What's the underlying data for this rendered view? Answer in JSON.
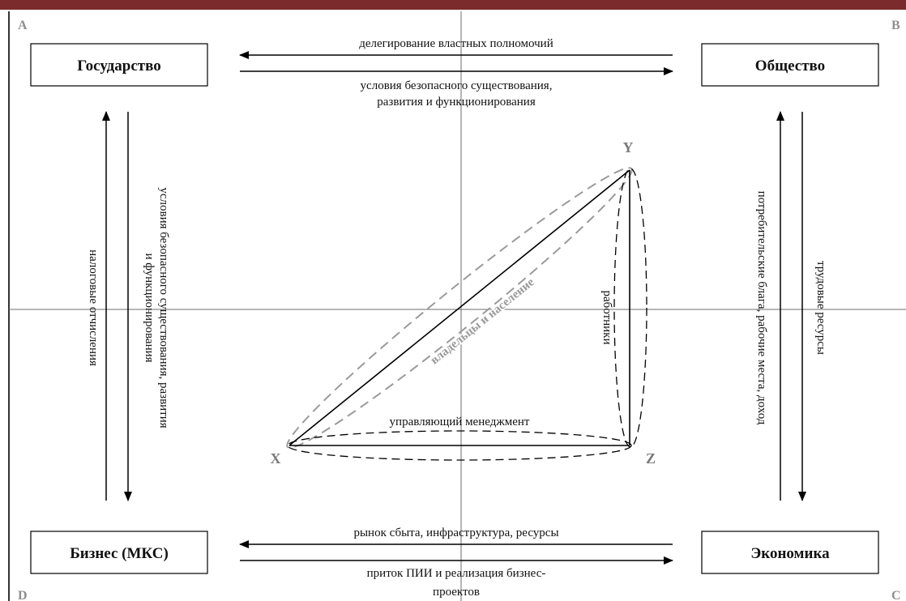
{
  "colors": {
    "top_bar": "#7b2b2b",
    "axis_lines": "#6e6e6e",
    "lines": "#000000",
    "gray_dashes": "#9a9a9a",
    "labels_gray": "#7a7a7a"
  },
  "corners": {
    "a": "A",
    "b": "B",
    "c": "C",
    "d": "D"
  },
  "nodes": {
    "state": "Государство",
    "society": "Общество",
    "business": "Бизнес (МКС)",
    "economy": "Экономика"
  },
  "edges": {
    "top_left": "делегирование властных полномочий",
    "top_right": [
      "условия безопасного существования,",
      "развития и функционирования"
    ],
    "left_up": "налоговые отчисления",
    "left_down": [
      "условия безопасного существования, развития",
      "и функционирования"
    ],
    "right_up": "потребительские блага, рабочие места, доход",
    "right_down": "трудовые ресурсы",
    "bottom_left": "рынок сбыта, инфраструктура, ресурсы",
    "bottom_right": [
      "приток ПИИ и реализация бизнес-",
      "проектов"
    ]
  },
  "triangle": {
    "vertices": {
      "x": "X",
      "y": "Y",
      "z": "Z"
    },
    "labels": {
      "owners": "владельцы и население",
      "workers": "работники",
      "management": "управляющий менеджмент"
    }
  }
}
